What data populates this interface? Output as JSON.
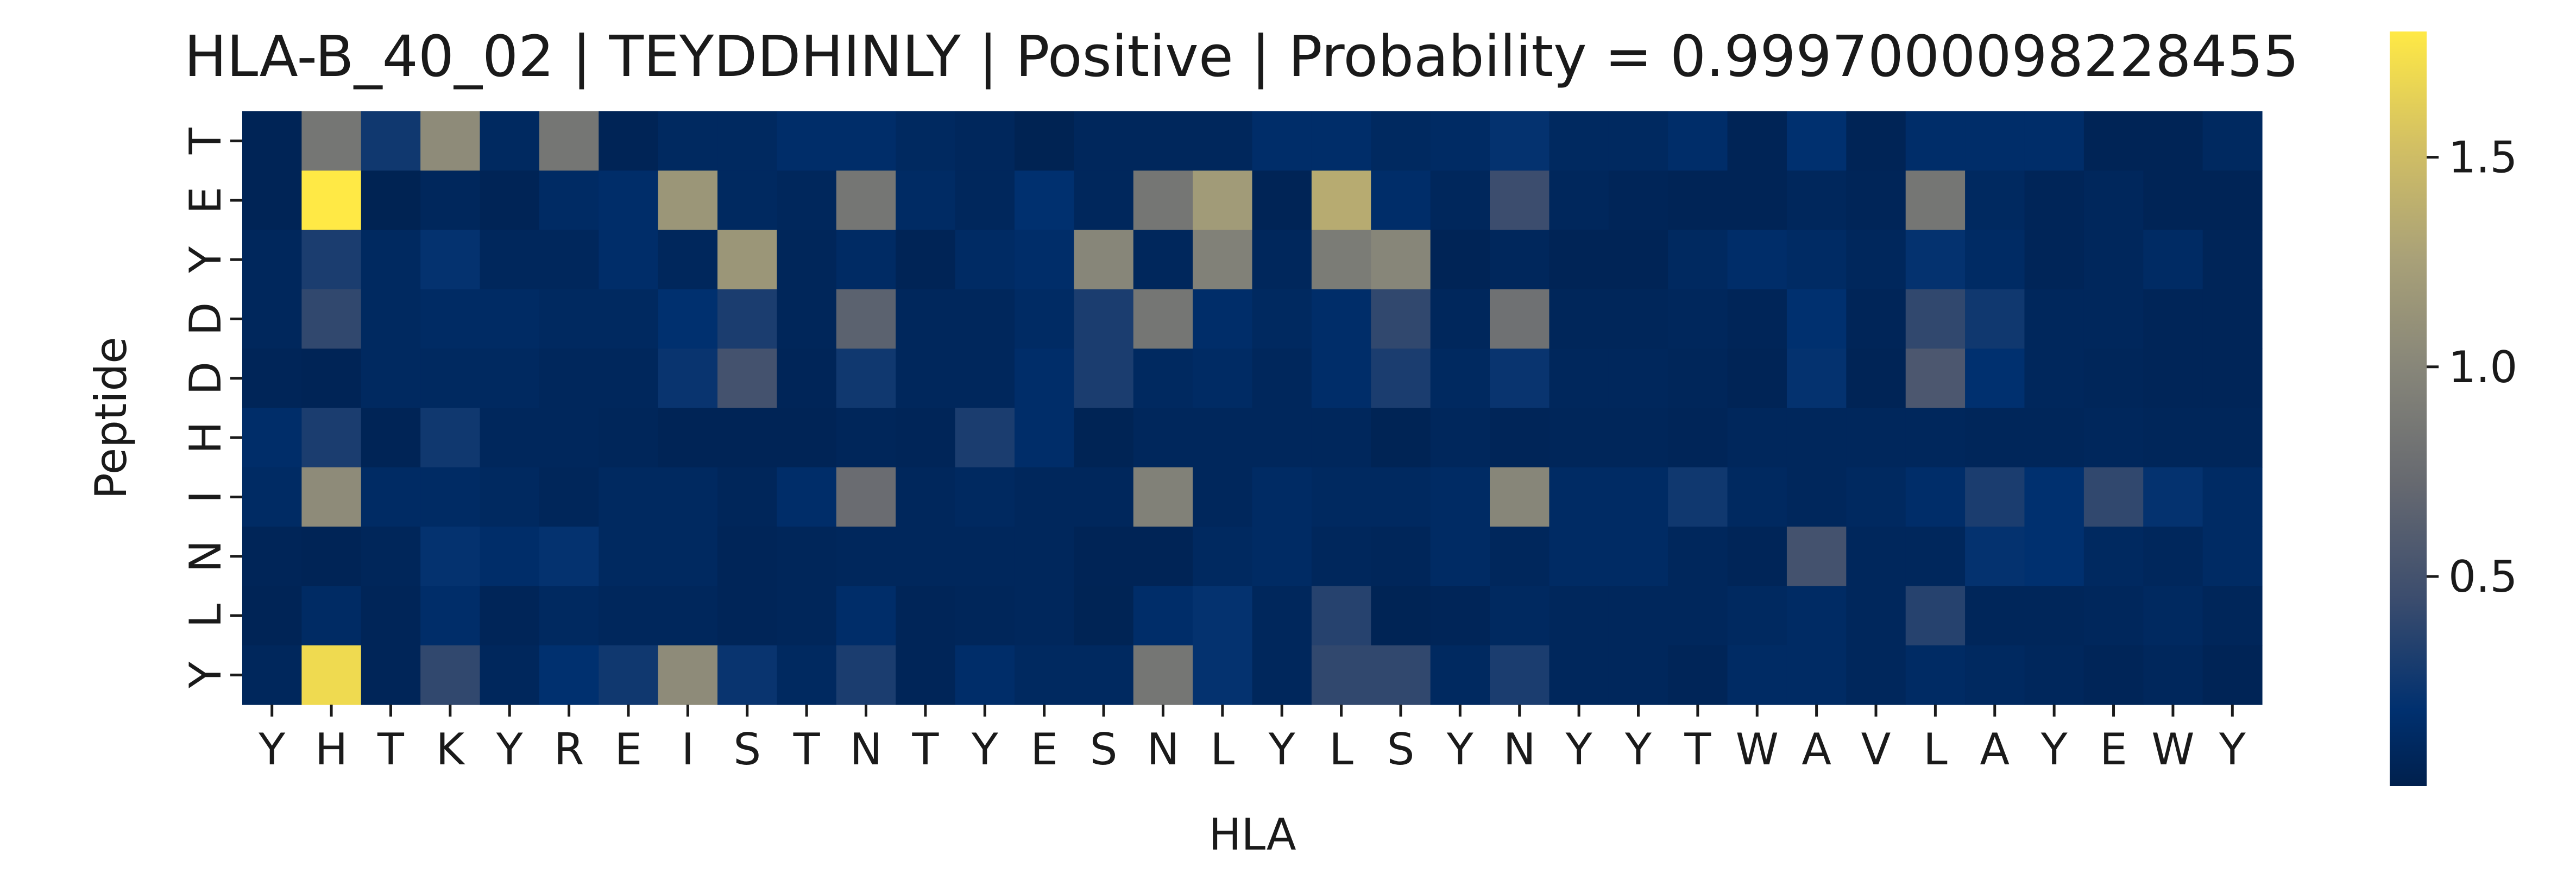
{
  "chart_data": {
    "type": "heatmap",
    "title": "HLA-B_40_02 | TEYDDHINLY | Positive | Probability = 0.9997000098228455",
    "xlabel": "HLA",
    "ylabel": "Peptide",
    "x_tick_labels": [
      "Y",
      "H",
      "T",
      "K",
      "Y",
      "R",
      "E",
      "I",
      "S",
      "T",
      "N",
      "T",
      "Y",
      "E",
      "S",
      "N",
      "L",
      "Y",
      "L",
      "S",
      "Y",
      "N",
      "Y",
      "Y",
      "T",
      "W",
      "A",
      "V",
      "L",
      "A",
      "Y",
      "E",
      "W",
      "Y"
    ],
    "y_tick_labels": [
      "T",
      "E",
      "Y",
      "D",
      "D",
      "H",
      "I",
      "N",
      "L",
      "Y"
    ],
    "colorbar": {
      "ticks": [
        0.5,
        1.0,
        1.5
      ],
      "tick_labels": [
        "0.5",
        "1.0",
        "1.5"
      ],
      "range": [
        0.0,
        1.8
      ],
      "colormap": "cividis"
    },
    "values": [
      [
        0.05,
        0.85,
        0.25,
        1.05,
        0.1,
        0.85,
        0.05,
        0.1,
        0.1,
        0.15,
        0.15,
        0.1,
        0.08,
        0.03,
        0.08,
        0.08,
        0.08,
        0.15,
        0.15,
        0.1,
        0.12,
        0.2,
        0.1,
        0.1,
        0.15,
        0.05,
        0.18,
        0.05,
        0.15,
        0.15,
        0.15,
        0.05,
        0.05,
        0.1
      ],
      [
        0.05,
        1.8,
        0.03,
        0.08,
        0.05,
        0.12,
        0.15,
        1.15,
        0.1,
        0.08,
        0.85,
        0.12,
        0.08,
        0.18,
        0.08,
        0.85,
        1.2,
        0.05,
        1.35,
        0.15,
        0.08,
        0.45,
        0.08,
        0.06,
        0.05,
        0.05,
        0.08,
        0.06,
        0.85,
        0.1,
        0.06,
        0.08,
        0.05,
        0.05
      ],
      [
        0.08,
        0.3,
        0.1,
        0.2,
        0.08,
        0.08,
        0.15,
        0.08,
        1.15,
        0.07,
        0.12,
        0.05,
        0.12,
        0.15,
        1.0,
        0.08,
        0.95,
        0.08,
        0.9,
        1.0,
        0.05,
        0.08,
        0.05,
        0.05,
        0.1,
        0.15,
        0.12,
        0.08,
        0.2,
        0.12,
        0.06,
        0.08,
        0.12,
        0.06
      ],
      [
        0.08,
        0.4,
        0.1,
        0.12,
        0.12,
        0.1,
        0.1,
        0.18,
        0.3,
        0.07,
        0.65,
        0.08,
        0.08,
        0.12,
        0.3,
        0.85,
        0.15,
        0.1,
        0.15,
        0.4,
        0.08,
        0.8,
        0.07,
        0.07,
        0.08,
        0.06,
        0.18,
        0.06,
        0.4,
        0.25,
        0.08,
        0.08,
        0.06,
        0.06
      ],
      [
        0.06,
        0.05,
        0.1,
        0.1,
        0.1,
        0.08,
        0.08,
        0.22,
        0.5,
        0.06,
        0.25,
        0.08,
        0.08,
        0.15,
        0.3,
        0.1,
        0.12,
        0.08,
        0.15,
        0.3,
        0.1,
        0.22,
        0.08,
        0.08,
        0.07,
        0.05,
        0.2,
        0.05,
        0.55,
        0.18,
        0.08,
        0.07,
        0.06,
        0.06
      ],
      [
        0.15,
        0.3,
        0.05,
        0.25,
        0.08,
        0.08,
        0.07,
        0.05,
        0.05,
        0.05,
        0.07,
        0.06,
        0.3,
        0.15,
        0.04,
        0.08,
        0.08,
        0.08,
        0.08,
        0.04,
        0.08,
        0.06,
        0.07,
        0.07,
        0.06,
        0.08,
        0.08,
        0.08,
        0.08,
        0.07,
        0.07,
        0.08,
        0.07,
        0.07
      ],
      [
        0.12,
        1.05,
        0.12,
        0.12,
        0.1,
        0.07,
        0.1,
        0.1,
        0.07,
        0.15,
        0.75,
        0.08,
        0.1,
        0.08,
        0.08,
        0.95,
        0.08,
        0.12,
        0.1,
        0.1,
        0.12,
        1.0,
        0.12,
        0.12,
        0.25,
        0.1,
        0.08,
        0.1,
        0.15,
        0.3,
        0.18,
        0.4,
        0.2,
        0.12
      ],
      [
        0.06,
        0.05,
        0.07,
        0.2,
        0.15,
        0.2,
        0.1,
        0.1,
        0.06,
        0.07,
        0.08,
        0.08,
        0.08,
        0.08,
        0.05,
        0.05,
        0.1,
        0.12,
        0.08,
        0.07,
        0.12,
        0.08,
        0.12,
        0.12,
        0.08,
        0.06,
        0.5,
        0.08,
        0.08,
        0.2,
        0.18,
        0.1,
        0.08,
        0.12
      ],
      [
        0.05,
        0.12,
        0.06,
        0.15,
        0.06,
        0.1,
        0.08,
        0.08,
        0.06,
        0.07,
        0.15,
        0.06,
        0.07,
        0.08,
        0.04,
        0.15,
        0.2,
        0.08,
        0.35,
        0.04,
        0.06,
        0.1,
        0.08,
        0.08,
        0.08,
        0.1,
        0.12,
        0.08,
        0.35,
        0.07,
        0.07,
        0.08,
        0.1,
        0.07
      ],
      [
        0.08,
        1.7,
        0.06,
        0.4,
        0.08,
        0.18,
        0.25,
        1.05,
        0.22,
        0.1,
        0.3,
        0.06,
        0.15,
        0.1,
        0.1,
        0.85,
        0.2,
        0.08,
        0.4,
        0.4,
        0.1,
        0.3,
        0.08,
        0.08,
        0.06,
        0.12,
        0.12,
        0.08,
        0.12,
        0.1,
        0.08,
        0.06,
        0.08,
        0.05
      ]
    ]
  }
}
